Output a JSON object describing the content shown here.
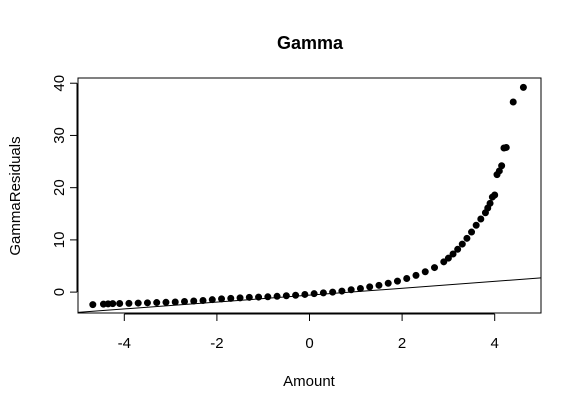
{
  "chart_data": {
    "type": "scatter",
    "title": "Gamma",
    "xlabel": "Amount",
    "ylabel": "GammaResiduals",
    "xlim": [
      -5.0,
      5.0
    ],
    "ylim": [
      -4.0,
      41.0
    ],
    "x_ticks": [
      -4,
      -2,
      0,
      2,
      4
    ],
    "x_tick_labels": [
      "-4",
      "-2",
      "0",
      "2",
      "4"
    ],
    "y_ticks": [
      0,
      10,
      20,
      30,
      40
    ],
    "y_tick_labels": [
      "0",
      "10",
      "20",
      "30",
      "40"
    ],
    "grid": false,
    "point_color": "#000000",
    "line_color": "#000000",
    "series": [
      {
        "values_x": [
          -4.68,
          -4.45,
          -4.35,
          -4.25,
          -4.1,
          -3.9,
          -3.7,
          -3.5,
          -3.3,
          -3.1,
          -2.9,
          -2.7,
          -2.5,
          -2.3,
          -2.1,
          -1.9,
          -1.7,
          -1.5,
          -1.3,
          -1.1,
          -0.9,
          -0.7,
          -0.5,
          -0.3,
          -0.1,
          0.1,
          0.3,
          0.5,
          0.7,
          0.9,
          1.1,
          1.3,
          1.5,
          1.7,
          1.9,
          2.1,
          2.3,
          2.5,
          2.7,
          2.9,
          3.0,
          3.1,
          3.2,
          3.3,
          3.4,
          3.5,
          3.6,
          3.7,
          3.8,
          3.85,
          3.9,
          3.95,
          4.0,
          4.05,
          4.1,
          4.15,
          4.2,
          4.25,
          4.4,
          4.62
        ],
        "values_y": [
          -2.4,
          -2.3,
          -2.25,
          -2.2,
          -2.18,
          -2.15,
          -2.1,
          -2.05,
          -2.0,
          -1.95,
          -1.9,
          -1.8,
          -1.7,
          -1.6,
          -1.45,
          -1.3,
          -1.2,
          -1.1,
          -1.0,
          -0.95,
          -0.9,
          -0.8,
          -0.7,
          -0.6,
          -0.45,
          -0.3,
          -0.15,
          0.0,
          0.2,
          0.45,
          0.7,
          1.0,
          1.3,
          1.7,
          2.1,
          2.6,
          3.2,
          3.9,
          4.7,
          5.8,
          6.5,
          7.3,
          8.2,
          9.2,
          10.3,
          11.5,
          12.8,
          14.0,
          15.2,
          16.1,
          17.0,
          18.2,
          18.6,
          22.5,
          23.2,
          24.2,
          27.6,
          27.7,
          36.4,
          39.2
        ]
      }
    ],
    "reference_line": {
      "x": [
        -5.0,
        5.0
      ],
      "y": [
        -3.88,
        2.72
      ]
    }
  }
}
